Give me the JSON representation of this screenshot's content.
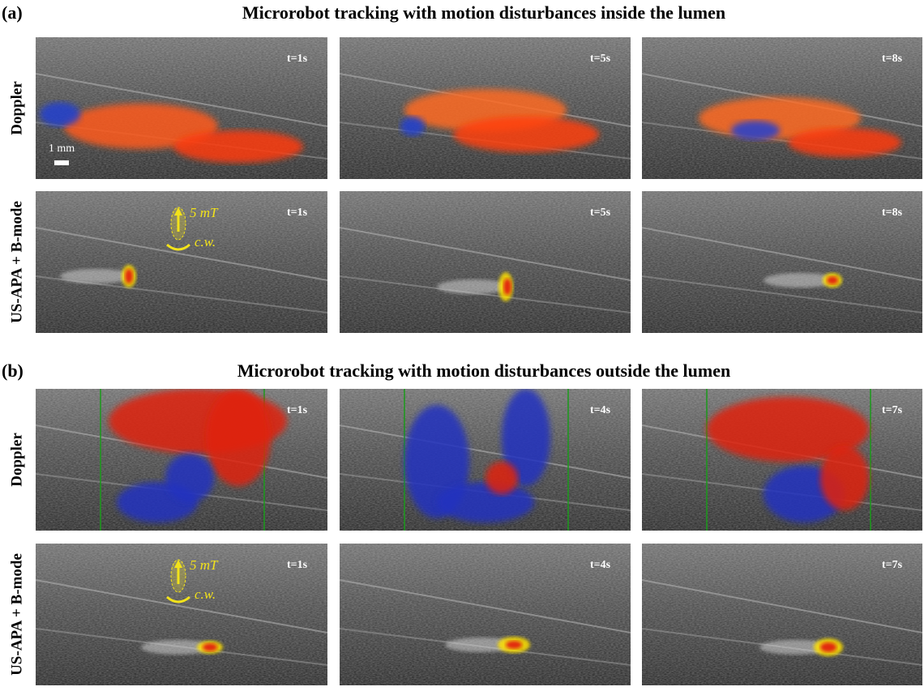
{
  "panels": [
    {
      "label": "(a)",
      "title": "Microrobot tracking with motion disturbances inside the lumen",
      "scale_bar": "1 mm",
      "field": "5 mT",
      "rotation": "c.w.",
      "rows": [
        {
          "label": "Doppler",
          "frames": [
            "t=1s",
            "t=5s",
            "t=8s"
          ]
        },
        {
          "label": "US-APA + B-mode",
          "frames": [
            "t=1s",
            "t=5s",
            "t=8s"
          ]
        }
      ]
    },
    {
      "label": "(b)",
      "title": "Microrobot tracking with motion disturbances outside the lumen",
      "field": "5 mT",
      "rotation": "c.w.",
      "rows": [
        {
          "label": "Doppler",
          "frames": [
            "t=1s",
            "t=4s",
            "t=7s"
          ]
        },
        {
          "label": "US-APA + B-mode",
          "frames": [
            "t=1s",
            "t=4s",
            "t=7s"
          ]
        }
      ]
    }
  ]
}
